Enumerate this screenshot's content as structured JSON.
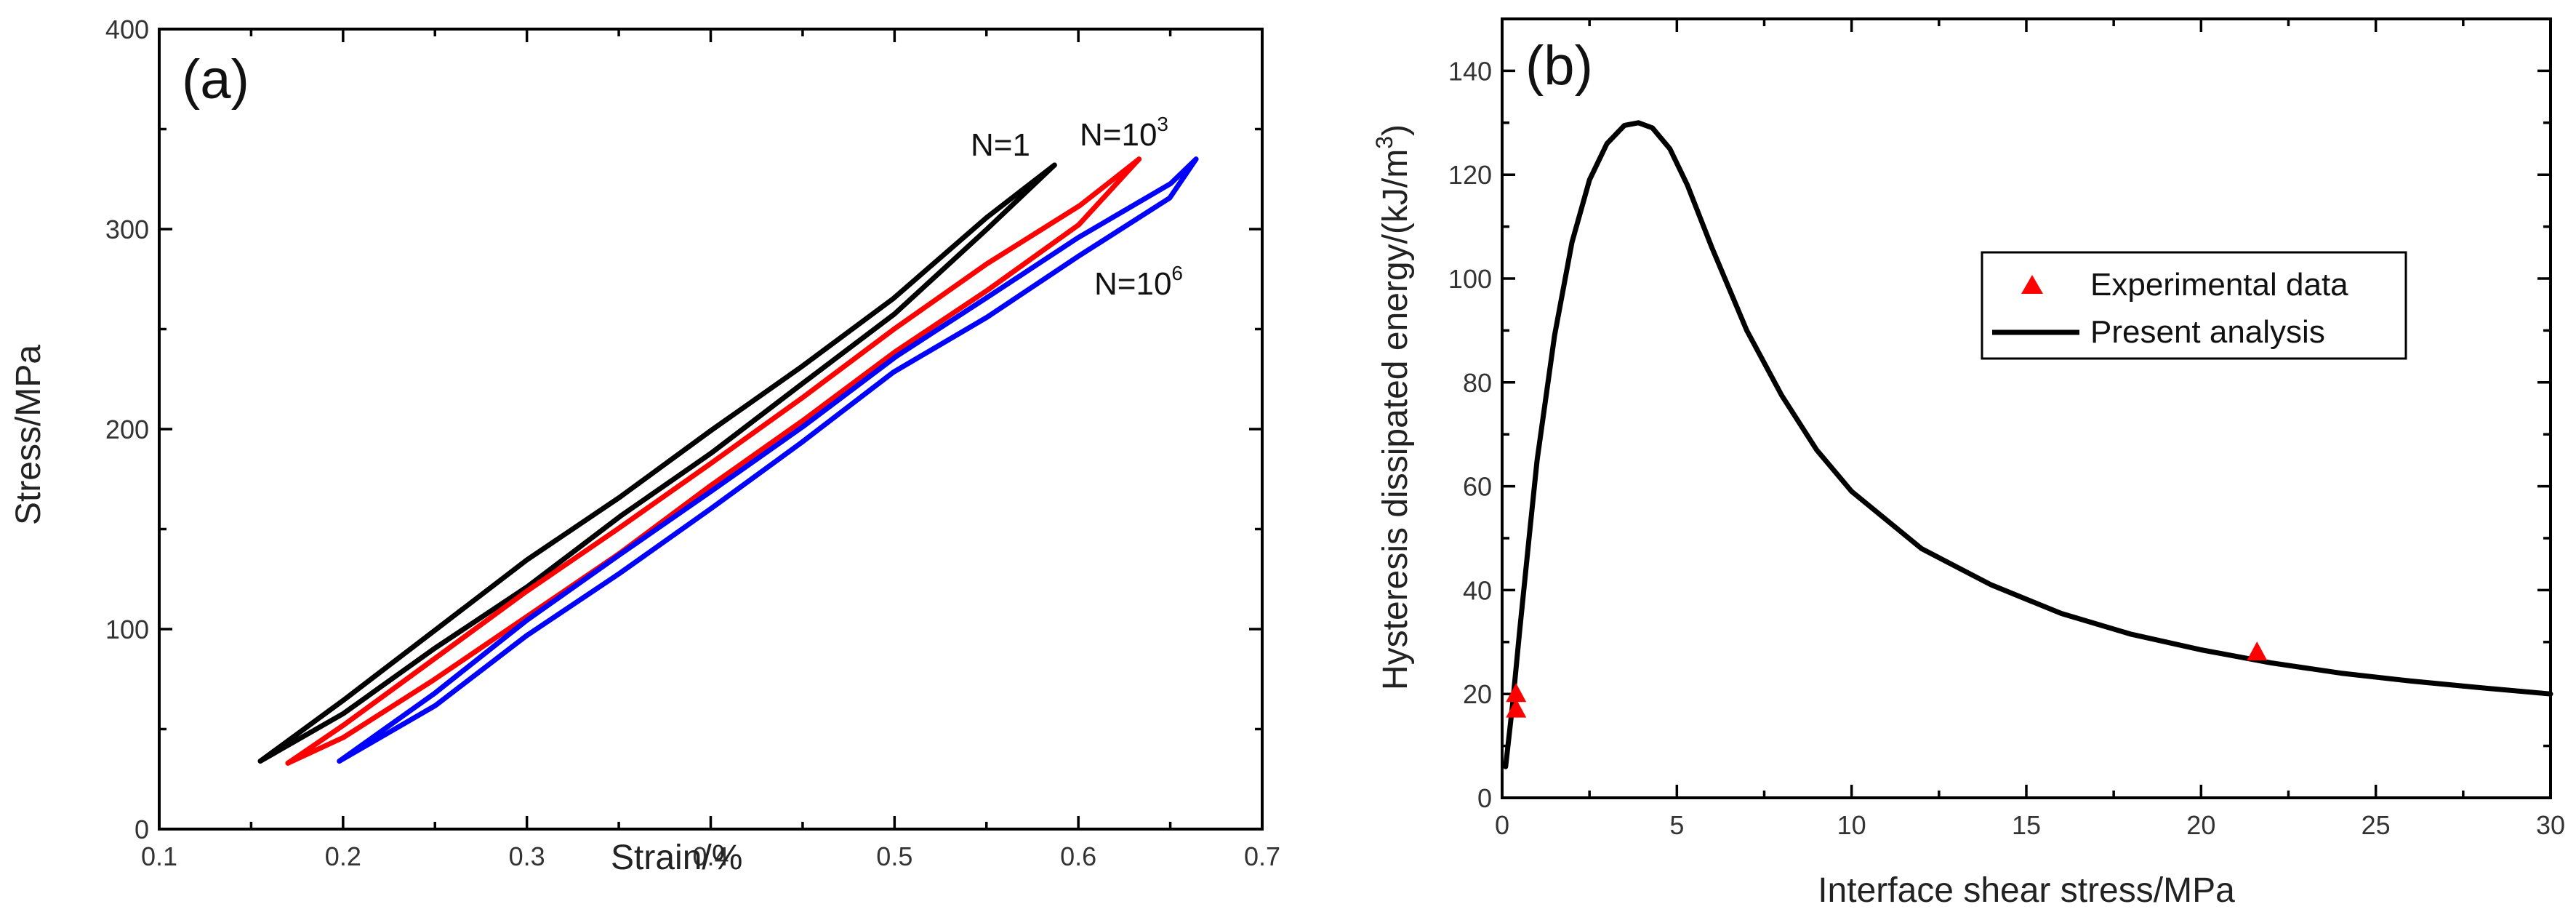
{
  "chart_data": [
    {
      "panel": "(a)",
      "type": "line",
      "title": "",
      "xlabel": "Strain/%",
      "ylabel": "Stress/MPa",
      "xlim": [
        0.1,
        0.7
      ],
      "ylim": [
        0,
        400
      ],
      "xticks": [
        "0.1",
        "0.2",
        "0.3",
        "0.4",
        "0.5",
        "0.6",
        "0.7"
      ],
      "yticks": [
        "0",
        "100",
        "200",
        "300",
        "400"
      ],
      "grid": false,
      "series": [
        {
          "name": "N=1",
          "name_base": "N=1",
          "name_sup": "",
          "color": "#000000",
          "loading": {
            "x": [
              0.155,
              0.2,
              0.25,
              0.3,
              0.35,
              0.4,
              0.45,
              0.5,
              0.55,
              0.587
            ],
            "y": [
              34,
              65,
              100,
              134,
              166,
              199,
              232,
              265,
              306,
              332
            ]
          },
          "unloading": {
            "x": [
              0.587,
              0.55,
              0.5,
              0.45,
              0.4,
              0.35,
              0.3,
              0.25,
              0.2,
              0.155
            ],
            "y": [
              332,
              300,
              258,
              222,
              188,
              156,
              122,
              90,
              58,
              34
            ]
          }
        },
        {
          "name": "N=10^3",
          "name_base": "N=10",
          "name_sup": "3",
          "color": "#ff0000",
          "loading": {
            "x": [
              0.17,
              0.2,
              0.25,
              0.3,
              0.35,
              0.4,
              0.45,
              0.5,
              0.55,
              0.6,
              0.633
            ],
            "y": [
              33,
              52,
              86,
              118,
              150,
              183,
              216,
              250,
              282,
              312,
              335
            ]
          },
          "unloading": {
            "x": [
              0.633,
              0.6,
              0.55,
              0.5,
              0.45,
              0.4,
              0.35,
              0.3,
              0.25,
              0.2,
              0.17
            ],
            "y": [
              335,
              302,
              270,
              238,
              204,
              172,
              138,
              106,
              74,
              46,
              33
            ]
          }
        },
        {
          "name": "N=10^6",
          "name_base": "N=10",
          "name_sup": "6",
          "color": "#0000ff",
          "loading": {
            "x": [
              0.198,
              0.25,
              0.3,
              0.35,
              0.4,
              0.45,
              0.5,
              0.55,
              0.6,
              0.65,
              0.664
            ],
            "y": [
              34,
              68,
              104,
              137,
              168,
              202,
              236,
              266,
              295,
              323,
              335
            ]
          },
          "unloading": {
            "x": [
              0.664,
              0.65,
              0.6,
              0.55,
              0.5,
              0.45,
              0.4,
              0.35,
              0.3,
              0.25,
              0.198
            ],
            "y": [
              335,
              316,
              286,
              256,
              228,
              194,
              160,
              128,
              96,
              62,
              34
            ]
          }
        }
      ]
    },
    {
      "panel": "(b)",
      "type": "line",
      "title": "",
      "xlabel": "Interface shear stress/MPa",
      "ylabel_base": "Hysteresis dissipated energy/(kJ/m",
      "ylabel_sup": "3",
      "ylabel_tail": ")",
      "xlim": [
        0,
        30
      ],
      "ylim": [
        0,
        150
      ],
      "xticks": [
        "0",
        "5",
        "10",
        "15",
        "20",
        "25",
        "30"
      ],
      "yticks": [
        "0",
        "20",
        "40",
        "60",
        "80",
        "100",
        "120",
        "140"
      ],
      "grid": false,
      "legend_position": "center-right",
      "series": [
        {
          "name": "Experimental data",
          "style": "scatter",
          "marker": "triangle",
          "color": "#ff0000",
          "x": [
            0.4,
            0.4,
            21.6
          ],
          "y": [
            20,
            17,
            28
          ]
        },
        {
          "name": "Present analysis",
          "style": "line",
          "color": "#000000",
          "x": [
            0.1,
            0.3,
            0.5,
            0.8,
            1.0,
            1.5,
            2.0,
            2.5,
            3.0,
            3.5,
            3.9,
            4.3,
            4.8,
            5.3,
            6.0,
            7.0,
            8.0,
            9.0,
            10.0,
            12.0,
            14.0,
            16.0,
            18.0,
            20.0,
            22.0,
            24.0,
            26.0,
            28.0,
            30.0
          ],
          "y": [
            6,
            18,
            32,
            52,
            65,
            89,
            107,
            119,
            126,
            129.5,
            130,
            129,
            125,
            118,
            106,
            90,
            77.5,
            67,
            59,
            48,
            41,
            35.5,
            31.5,
            28.5,
            26,
            24,
            22.5,
            21.2,
            20
          ]
        }
      ]
    }
  ]
}
